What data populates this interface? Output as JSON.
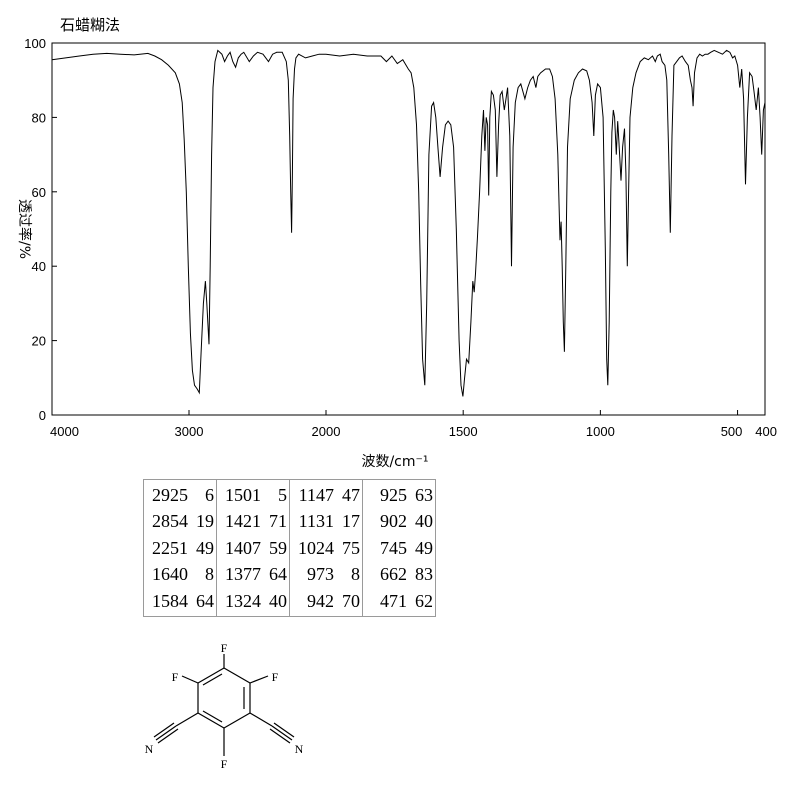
{
  "title": "石蜡糊法",
  "chart_data": {
    "type": "line",
    "title": "石蜡糊法",
    "xlabel": "波数/cm⁻¹",
    "ylabel": "透过率/%",
    "xlim": [
      4000,
      400
    ],
    "ylim": [
      0,
      100
    ],
    "x_axis_scale": "two-segment linear: 4000–2000 compressed, 2000–400 expanded",
    "x_ticks": [
      {
        "value": 4000,
        "label": "4000"
      },
      {
        "value": 3000,
        "label": "3000"
      },
      {
        "value": 2000,
        "label": "2000"
      },
      {
        "value": 1500,
        "label": "1500"
      },
      {
        "value": 1000,
        "label": "1000"
      },
      {
        "value": 500,
        "label": "500"
      },
      {
        "value": 400,
        "label": "400"
      }
    ],
    "y_ticks": [
      0,
      20,
      40,
      60,
      80,
      100
    ],
    "grid": false,
    "series": [
      {
        "points": [
          [
            4000,
            95.5
          ],
          [
            3900,
            96
          ],
          [
            3800,
            96.5
          ],
          [
            3700,
            97
          ],
          [
            3600,
            97.2
          ],
          [
            3500,
            97
          ],
          [
            3400,
            96.8
          ],
          [
            3300,
            97.2
          ],
          [
            3250,
            96.5
          ],
          [
            3200,
            95.5
          ],
          [
            3150,
            94
          ],
          [
            3100,
            92
          ],
          [
            3070,
            89
          ],
          [
            3050,
            84
          ],
          [
            3035,
            74
          ],
          [
            3020,
            60
          ],
          [
            3005,
            40
          ],
          [
            2990,
            22
          ],
          [
            2975,
            12
          ],
          [
            2960,
            8
          ],
          [
            2940,
            7
          ],
          [
            2925,
            6
          ],
          [
            2910,
            18
          ],
          [
            2895,
            30
          ],
          [
            2880,
            36
          ],
          [
            2870,
            30
          ],
          [
            2854,
            19
          ],
          [
            2845,
            40
          ],
          [
            2835,
            70
          ],
          [
            2825,
            88
          ],
          [
            2810,
            95
          ],
          [
            2790,
            98
          ],
          [
            2760,
            97
          ],
          [
            2740,
            95
          ],
          [
            2720,
            96.5
          ],
          [
            2700,
            97.5
          ],
          [
            2680,
            95
          ],
          [
            2660,
            93.5
          ],
          [
            2640,
            96
          ],
          [
            2620,
            97
          ],
          [
            2600,
            97.5
          ],
          [
            2560,
            95
          ],
          [
            2530,
            96.5
          ],
          [
            2500,
            97.5
          ],
          [
            2460,
            97
          ],
          [
            2420,
            95
          ],
          [
            2390,
            97
          ],
          [
            2360,
            97.5
          ],
          [
            2320,
            97.5
          ],
          [
            2290,
            95
          ],
          [
            2275,
            90
          ],
          [
            2265,
            75
          ],
          [
            2258,
            60
          ],
          [
            2251,
            49
          ],
          [
            2245,
            65
          ],
          [
            2240,
            85
          ],
          [
            2230,
            93
          ],
          [
            2220,
            96
          ],
          [
            2200,
            97
          ],
          [
            2150,
            96
          ],
          [
            2100,
            96.5
          ],
          [
            2050,
            97
          ],
          [
            2000,
            97
          ],
          [
            1950,
            96.5
          ],
          [
            1900,
            97
          ],
          [
            1850,
            96.5
          ],
          [
            1800,
            96.5
          ],
          [
            1780,
            95
          ],
          [
            1760,
            96.5
          ],
          [
            1740,
            94.5
          ],
          [
            1720,
            95.5
          ],
          [
            1700,
            93
          ],
          [
            1690,
            92
          ],
          [
            1680,
            88
          ],
          [
            1670,
            78
          ],
          [
            1662,
            60
          ],
          [
            1655,
            35
          ],
          [
            1648,
            15
          ],
          [
            1640,
            8
          ],
          [
            1633,
            30
          ],
          [
            1625,
            70
          ],
          [
            1615,
            83
          ],
          [
            1608,
            84
          ],
          [
            1600,
            80
          ],
          [
            1592,
            72
          ],
          [
            1584,
            64
          ],
          [
            1575,
            72
          ],
          [
            1565,
            78
          ],
          [
            1555,
            79
          ],
          [
            1545,
            78
          ],
          [
            1535,
            72
          ],
          [
            1525,
            50
          ],
          [
            1515,
            20
          ],
          [
            1508,
            8
          ],
          [
            1501,
            5
          ],
          [
            1495,
            10
          ],
          [
            1488,
            15
          ],
          [
            1480,
            14
          ],
          [
            1472,
            25
          ],
          [
            1465,
            36
          ],
          [
            1460,
            33
          ],
          [
            1455,
            38
          ],
          [
            1448,
            48
          ],
          [
            1440,
            60
          ],
          [
            1432,
            75
          ],
          [
            1426,
            82
          ],
          [
            1421,
            71
          ],
          [
            1416,
            80
          ],
          [
            1411,
            78
          ],
          [
            1407,
            59
          ],
          [
            1403,
            80
          ],
          [
            1397,
            87
          ],
          [
            1390,
            86
          ],
          [
            1383,
            82
          ],
          [
            1377,
            64
          ],
          [
            1371,
            78
          ],
          [
            1365,
            86
          ],
          [
            1358,
            87
          ],
          [
            1350,
            82
          ],
          [
            1344,
            85
          ],
          [
            1338,
            88
          ],
          [
            1330,
            75
          ],
          [
            1324,
            40
          ],
          [
            1318,
            72
          ],
          [
            1310,
            84
          ],
          [
            1300,
            88
          ],
          [
            1290,
            89
          ],
          [
            1275,
            85
          ],
          [
            1265,
            88
          ],
          [
            1255,
            90
          ],
          [
            1245,
            91
          ],
          [
            1235,
            88
          ],
          [
            1228,
            91
          ],
          [
            1218,
            92
          ],
          [
            1200,
            93
          ],
          [
            1185,
            93
          ],
          [
            1175,
            91
          ],
          [
            1165,
            85
          ],
          [
            1155,
            70
          ],
          [
            1150,
            55
          ],
          [
            1147,
            47
          ],
          [
            1143,
            52
          ],
          [
            1139,
            40
          ],
          [
            1135,
            25
          ],
          [
            1131,
            17
          ],
          [
            1126,
            40
          ],
          [
            1120,
            72
          ],
          [
            1110,
            85
          ],
          [
            1095,
            90
          ],
          [
            1080,
            92
          ],
          [
            1065,
            93
          ],
          [
            1050,
            92.5
          ],
          [
            1040,
            90
          ],
          [
            1030,
            84
          ],
          [
            1024,
            75
          ],
          [
            1018,
            86
          ],
          [
            1010,
            89
          ],
          [
            1000,
            88
          ],
          [
            990,
            80
          ],
          [
            982,
            45
          ],
          [
            977,
            15
          ],
          [
            973,
            8
          ],
          [
            968,
            25
          ],
          [
            962,
            60
          ],
          [
            958,
            76
          ],
          [
            953,
            82
          ],
          [
            948,
            80
          ],
          [
            942,
            70
          ],
          [
            937,
            79
          ],
          [
            932,
            73
          ],
          [
            925,
            63
          ],
          [
            919,
            72
          ],
          [
            912,
            77
          ],
          [
            907,
            65
          ],
          [
            902,
            40
          ],
          [
            897,
            60
          ],
          [
            892,
            80
          ],
          [
            882,
            88
          ],
          [
            870,
            92
          ],
          [
            855,
            95
          ],
          [
            840,
            96
          ],
          [
            825,
            95.5
          ],
          [
            810,
            96.5
          ],
          [
            800,
            95
          ],
          [
            792,
            96.5
          ],
          [
            782,
            97
          ],
          [
            775,
            95
          ],
          [
            765,
            94
          ],
          [
            758,
            90
          ],
          [
            751,
            70
          ],
          [
            745,
            49
          ],
          [
            739,
            75
          ],
          [
            732,
            94
          ],
          [
            722,
            95
          ],
          [
            712,
            96
          ],
          [
            702,
            96.5
          ],
          [
            690,
            95
          ],
          [
            680,
            94
          ],
          [
            672,
            90
          ],
          [
            666,
            88
          ],
          [
            662,
            83
          ],
          [
            657,
            92
          ],
          [
            648,
            96
          ],
          [
            638,
            97
          ],
          [
            628,
            96.5
          ],
          [
            618,
            97
          ],
          [
            608,
            97
          ],
          [
            598,
            97.5
          ],
          [
            585,
            98
          ],
          [
            570,
            97.5
          ],
          [
            555,
            97
          ],
          [
            540,
            98
          ],
          [
            528,
            97.5
          ],
          [
            518,
            96
          ],
          [
            510,
            96.5
          ],
          [
            500,
            94
          ],
          [
            492,
            88
          ],
          [
            485,
            93
          ],
          [
            478,
            85
          ],
          [
            471,
            62
          ],
          [
            464,
            80
          ],
          [
            456,
            92
          ],
          [
            447,
            91
          ],
          [
            440,
            87
          ],
          [
            432,
            82
          ],
          [
            424,
            88
          ],
          [
            418,
            80
          ],
          [
            412,
            70
          ],
          [
            406,
            82
          ],
          [
            400,
            84
          ]
        ]
      }
    ]
  },
  "peak_table": {
    "columns": [
      [
        {
          "wn": "2925",
          "t": "6"
        },
        {
          "wn": "2854",
          "t": "19"
        },
        {
          "wn": "2251",
          "t": "49"
        },
        {
          "wn": "1640",
          "t": "8"
        },
        {
          "wn": "1584",
          "t": "64"
        }
      ],
      [
        {
          "wn": "1501",
          "t": "5"
        },
        {
          "wn": "1421",
          "t": "71"
        },
        {
          "wn": "1407",
          "t": "59"
        },
        {
          "wn": "1377",
          "t": "64"
        },
        {
          "wn": "1324",
          "t": "40"
        }
      ],
      [
        {
          "wn": "1147",
          "t": "47"
        },
        {
          "wn": "1131",
          "t": "17"
        },
        {
          "wn": "1024",
          "t": "75"
        },
        {
          "wn": "973",
          "t": "8"
        },
        {
          "wn": "942",
          "t": "70"
        }
      ],
      [
        {
          "wn": "925",
          "t": "63"
        },
        {
          "wn": "902",
          "t": "40"
        },
        {
          "wn": "745",
          "t": "49"
        },
        {
          "wn": "662",
          "t": "83"
        },
        {
          "wn": "471",
          "t": "62"
        }
      ]
    ]
  },
  "molecule": {
    "atoms": {
      "f1": "F",
      "f2": "F",
      "f3": "F",
      "f4": "F",
      "n1": "N",
      "n2": "N"
    }
  }
}
